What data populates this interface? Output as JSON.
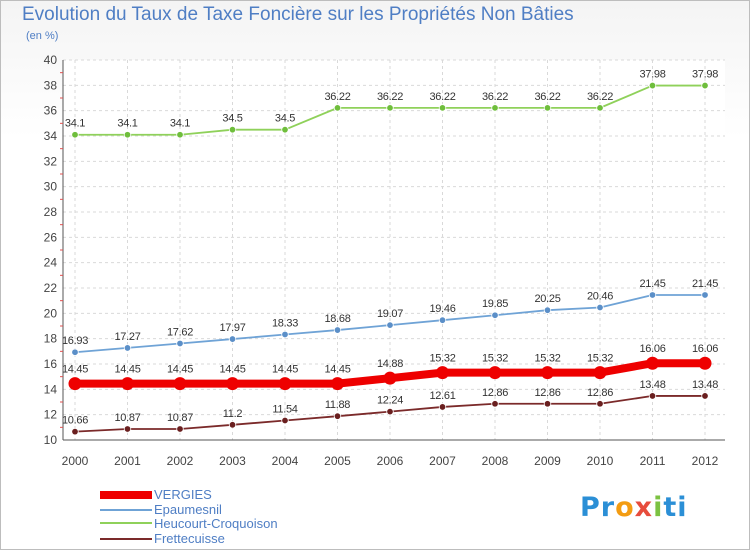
{
  "chart_data": {
    "type": "line",
    "title": "Evolution du Taux de Taxe Foncière sur les Propriétés Non Bâties",
    "ylabel": "(en %)",
    "xlabel": "",
    "categories": [
      "2000",
      "2001",
      "2002",
      "2003",
      "2004",
      "2005",
      "2006",
      "2007",
      "2008",
      "2009",
      "2010",
      "2011",
      "2012"
    ],
    "ylim": [
      10,
      40
    ],
    "yticks": [
      10,
      12,
      14,
      16,
      18,
      20,
      22,
      24,
      26,
      28,
      30,
      32,
      34,
      36,
      38,
      40
    ],
    "grid": true,
    "series": [
      {
        "name": "Heucourt-Croquoison",
        "color": "#8fd15a",
        "marker": "#6fbe3c",
        "values": [
          34.1,
          34.1,
          34.1,
          34.5,
          34.5,
          36.22,
          36.22,
          36.22,
          36.22,
          36.22,
          36.22,
          37.98,
          37.98
        ],
        "labels": [
          "34.1",
          "34.1",
          "34.1",
          "34.5",
          "34.5",
          "36.22",
          "36.22",
          "36.22",
          "36.22",
          "36.22",
          "36.22",
          "37.98",
          "37.98"
        ]
      },
      {
        "name": "Epaumesnil",
        "color": "#6fa3d6",
        "marker": "#5b8fc8",
        "values": [
          16.93,
          17.27,
          17.62,
          17.97,
          18.33,
          18.68,
          19.07,
          19.46,
          19.85,
          20.25,
          20.46,
          21.45,
          21.45
        ],
        "labels": [
          "16.93",
          "17.27",
          "17.62",
          "17.97",
          "18.33",
          "18.68",
          "19.07",
          "19.46",
          "19.85",
          "20.25",
          "20.46",
          "21.45",
          "21.45"
        ]
      },
      {
        "name": "VERGIES",
        "color": "#ee0000",
        "marker": "#ee0000",
        "values": [
          14.45,
          14.45,
          14.45,
          14.45,
          14.45,
          14.45,
          14.88,
          15.32,
          15.32,
          15.32,
          15.32,
          16.06,
          16.06
        ],
        "labels": [
          "14.45",
          "14.45",
          "14.45",
          "14.45",
          "14.45",
          "14.45",
          "14.88",
          "15.32",
          "15.32",
          "15.32",
          "15.32",
          "16.06",
          "16.06"
        ]
      },
      {
        "name": "Frettecuisse",
        "color": "#7b2a2a",
        "marker": "#6a1f1f",
        "values": [
          10.66,
          10.87,
          10.87,
          11.2,
          11.54,
          11.88,
          12.24,
          12.61,
          12.86,
          12.86,
          12.86,
          13.48,
          13.48
        ],
        "labels": [
          "10.66",
          "10.87",
          "10.87",
          "11.2",
          "11.54",
          "11.88",
          "12.24",
          "12.61",
          "12.86",
          "12.86",
          "12.86",
          "13.48",
          "13.48"
        ]
      }
    ],
    "legend": [
      {
        "name": "VERGIES",
        "color": "#ee0000"
      },
      {
        "name": "Epaumesnil",
        "color": "#6fa3d6"
      },
      {
        "name": "Heucourt-Croquoison",
        "color": "#8fd15a"
      },
      {
        "name": "Frettecuisse",
        "color": "#7b2a2a"
      }
    ]
  },
  "logo": {
    "p1": "Pr",
    "p2": "o",
    "p3": "x",
    "p4": "i",
    "p5": "ti"
  }
}
